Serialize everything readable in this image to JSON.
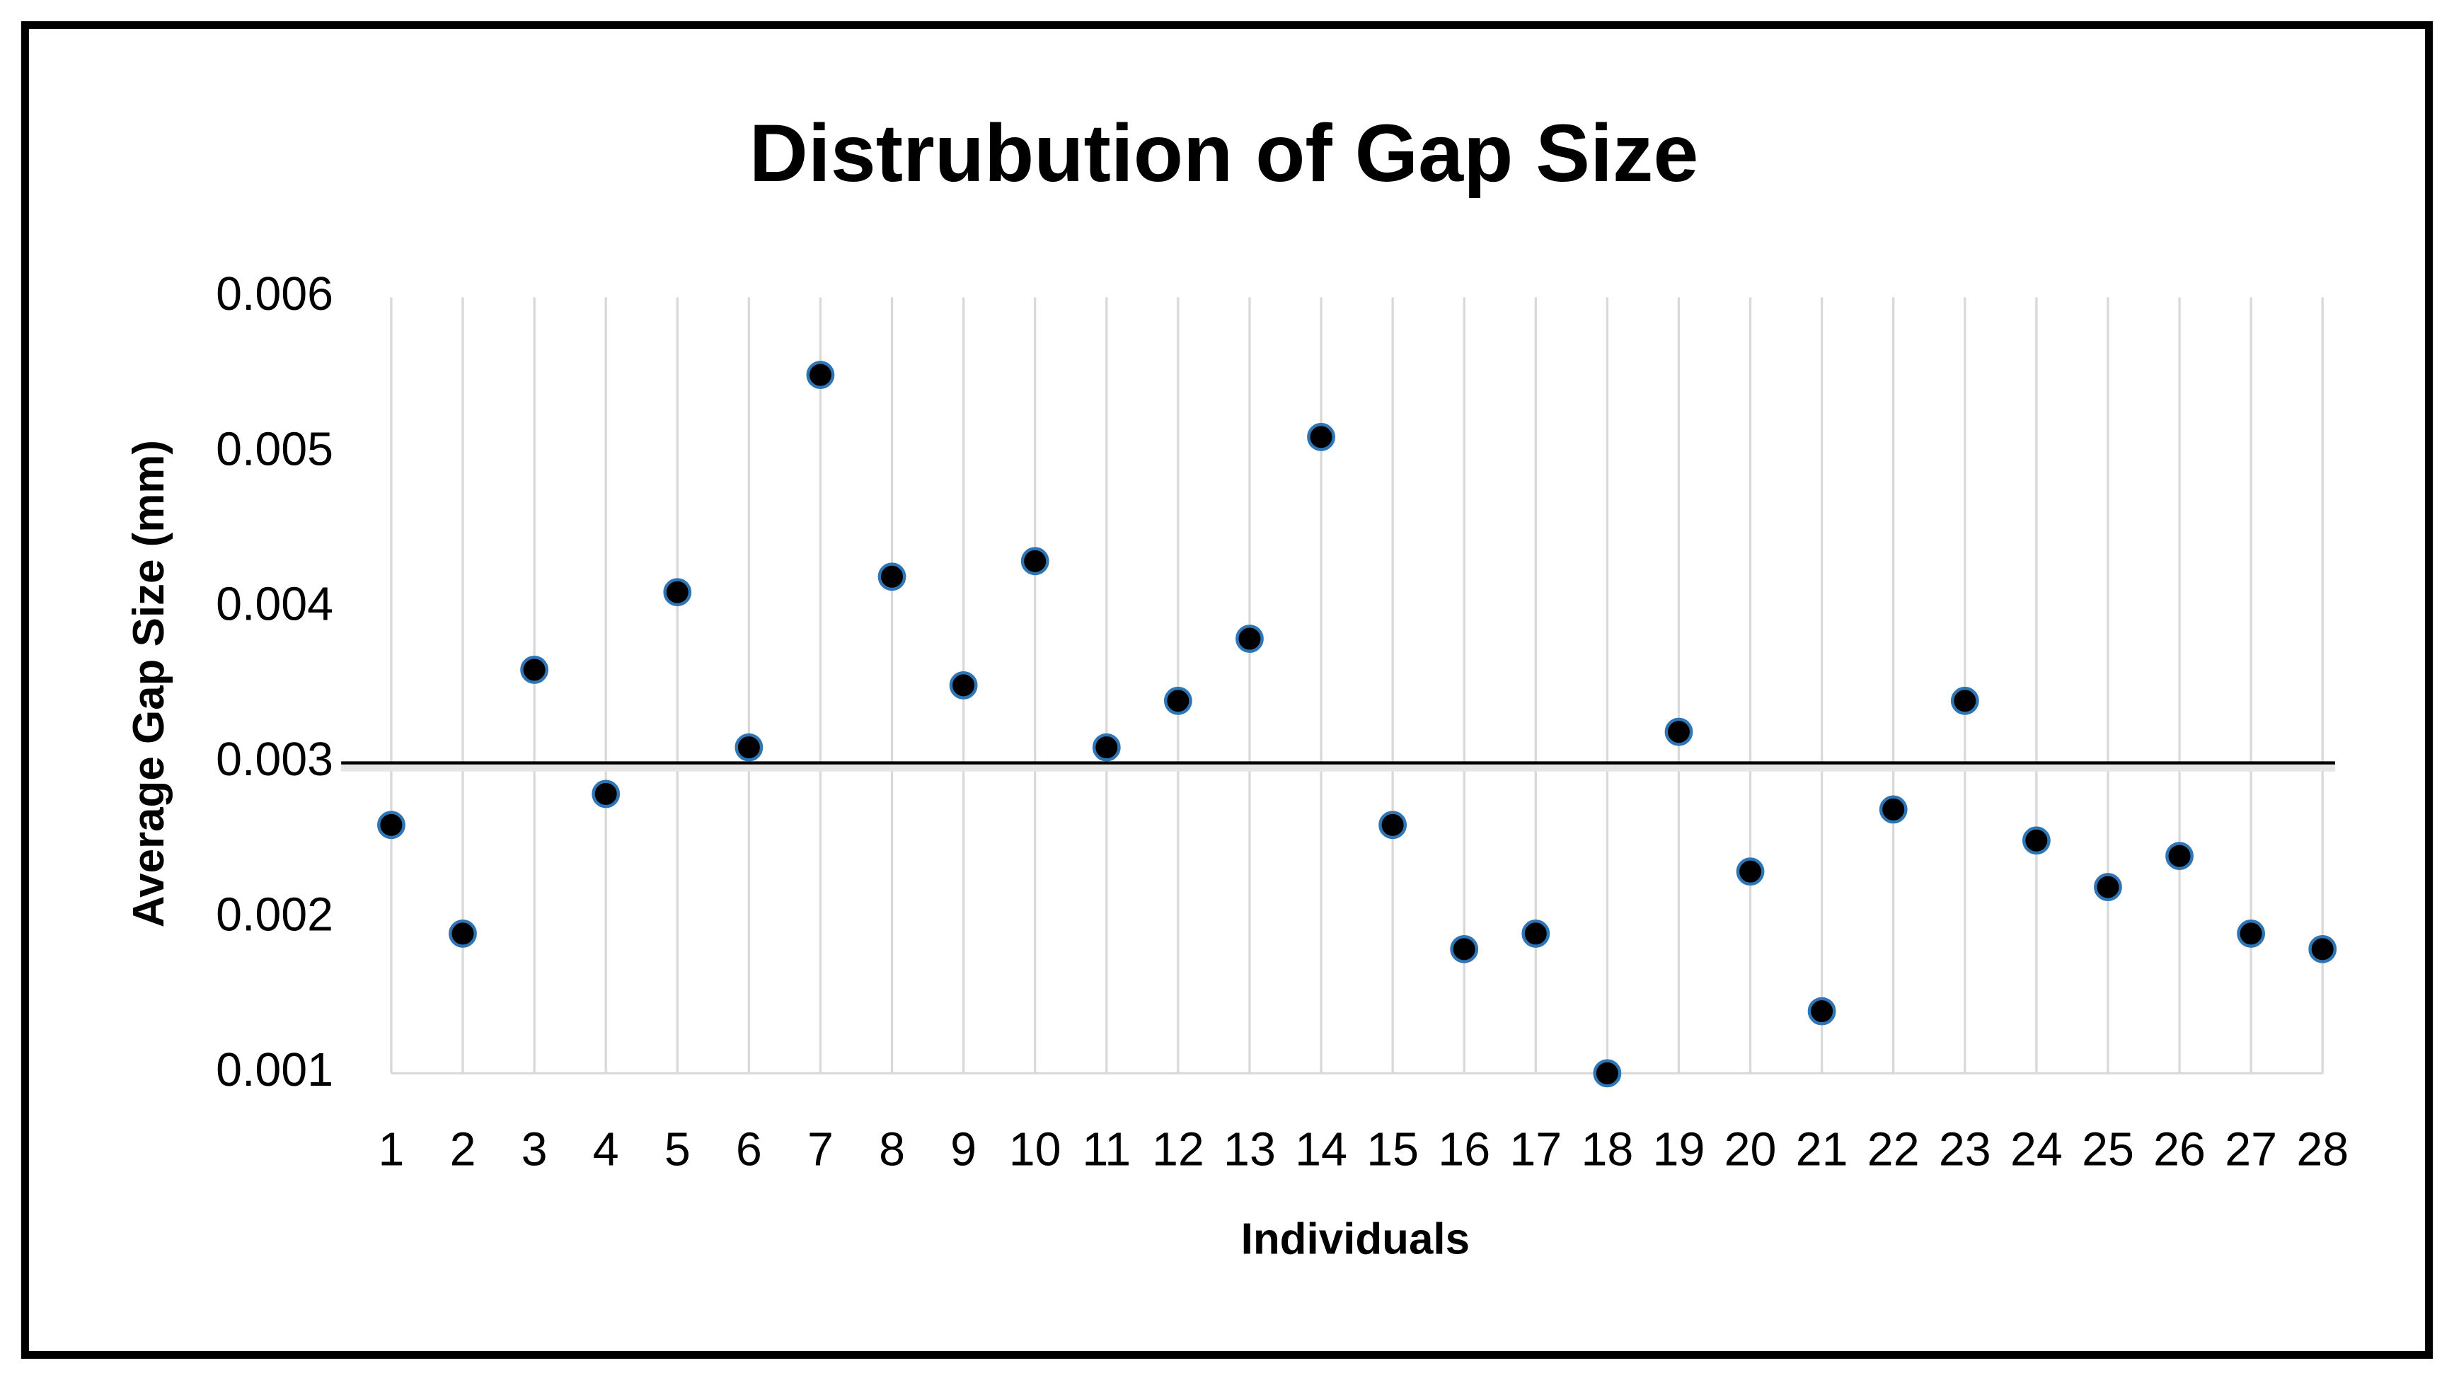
{
  "chart_data": {
    "type": "scatter",
    "title": "Distrubution of Gap Size",
    "x_label": "Individuals",
    "y_label": "Average Gap Size (mm)",
    "categories": [
      "1",
      "2",
      "3",
      "4",
      "5",
      "6",
      "7",
      "8",
      "9",
      "10",
      "11",
      "12",
      "13",
      "14",
      "15",
      "16",
      "17",
      "18",
      "19",
      "20",
      "21",
      "22",
      "23",
      "24",
      "25",
      "26",
      "27",
      "28"
    ],
    "values": [
      0.0026,
      0.0019,
      0.0036,
      0.0028,
      0.0041,
      0.0031,
      0.0055,
      0.0042,
      0.0035,
      0.0043,
      0.0031,
      0.0034,
      0.0038,
      0.0051,
      0.0026,
      0.0018,
      0.0019,
      0.001,
      0.0032,
      0.0023,
      0.0014,
      0.0027,
      0.0034,
      0.0025,
      0.0022,
      0.0024,
      0.0019,
      0.0018
    ],
    "color": "#000000",
    "reference_line": 0.003,
    "ylim": [
      0.001,
      0.006
    ],
    "yticks": [
      0.001,
      0.002,
      0.003,
      0.004,
      0.005,
      0.006
    ],
    "grid": "vertical"
  }
}
